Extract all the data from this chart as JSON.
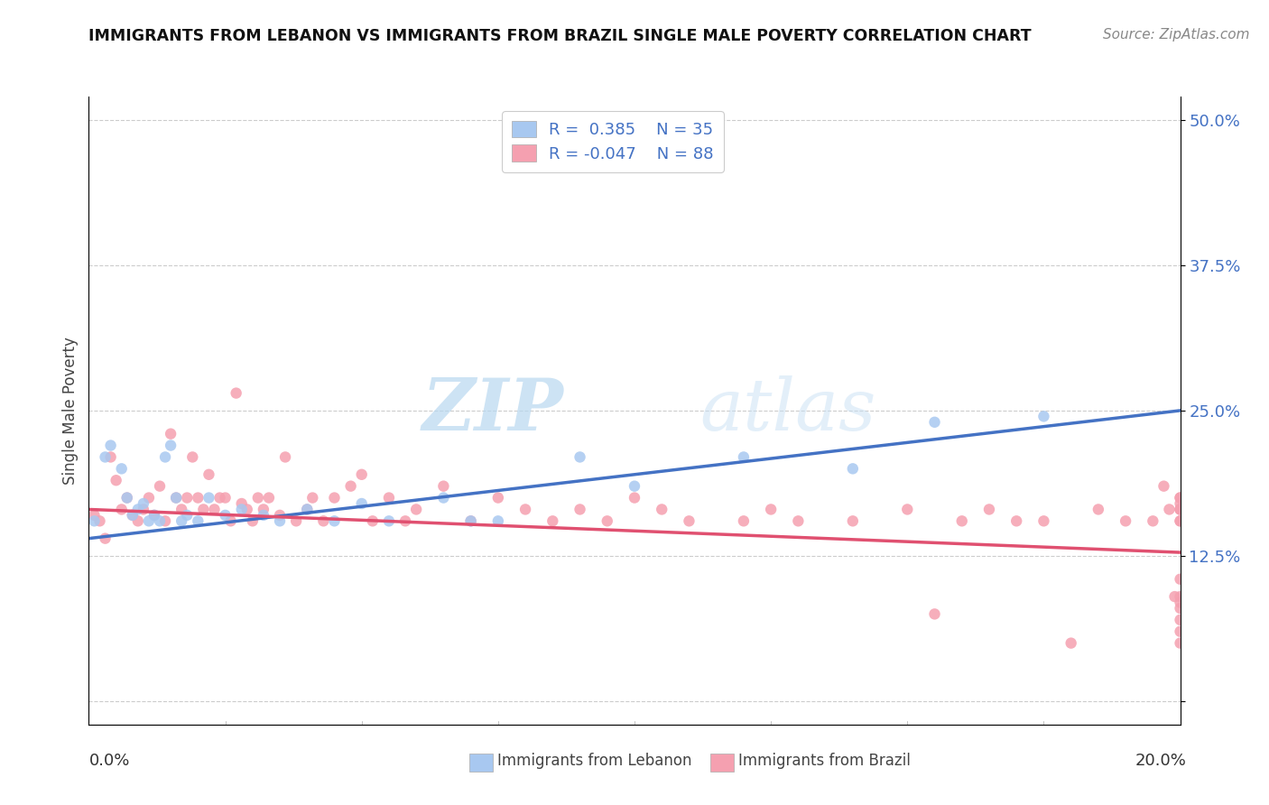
{
  "title": "IMMIGRANTS FROM LEBANON VS IMMIGRANTS FROM BRAZIL SINGLE MALE POVERTY CORRELATION CHART",
  "source": "Source: ZipAtlas.com",
  "ylabel": "Single Male Poverty",
  "xlim": [
    0.0,
    0.2
  ],
  "ylim": [
    -0.02,
    0.52
  ],
  "yticks": [
    0.0,
    0.125,
    0.25,
    0.375,
    0.5
  ],
  "ytick_labels": [
    "",
    "12.5%",
    "25.0%",
    "37.5%",
    "50.0%"
  ],
  "color_lebanon": "#a8c8f0",
  "color_brazil": "#f5a0b0",
  "line_color_lebanon": "#4472c4",
  "line_color_brazil": "#e05070",
  "watermark_zip": "ZIP",
  "watermark_atlas": "atlas",
  "background_color": "#ffffff",
  "grid_color": "#cccccc",
  "leb_line_x0": 0.0,
  "leb_line_y0": 0.14,
  "leb_line_x1": 0.2,
  "leb_line_y1": 0.25,
  "bra_line_x0": 0.0,
  "bra_line_y0": 0.165,
  "bra_line_x1": 0.2,
  "bra_line_y1": 0.128,
  "lebanon_scatter_x": [
    0.001,
    0.003,
    0.004,
    0.006,
    0.007,
    0.008,
    0.009,
    0.01,
    0.011,
    0.012,
    0.013,
    0.014,
    0.015,
    0.016,
    0.017,
    0.018,
    0.02,
    0.022,
    0.025,
    0.028,
    0.032,
    0.035,
    0.04,
    0.045,
    0.05,
    0.055,
    0.065,
    0.07,
    0.075,
    0.09,
    0.1,
    0.12,
    0.14,
    0.155,
    0.175
  ],
  "lebanon_scatter_y": [
    0.155,
    0.21,
    0.22,
    0.2,
    0.175,
    0.16,
    0.165,
    0.17,
    0.155,
    0.16,
    0.155,
    0.21,
    0.22,
    0.175,
    0.155,
    0.16,
    0.155,
    0.175,
    0.16,
    0.165,
    0.16,
    0.155,
    0.165,
    0.155,
    0.17,
    0.155,
    0.175,
    0.155,
    0.155,
    0.21,
    0.185,
    0.21,
    0.2,
    0.24,
    0.245
  ],
  "brazil_scatter_x": [
    0.001,
    0.002,
    0.003,
    0.004,
    0.005,
    0.006,
    0.007,
    0.008,
    0.009,
    0.01,
    0.011,
    0.012,
    0.013,
    0.014,
    0.015,
    0.016,
    0.017,
    0.018,
    0.019,
    0.02,
    0.021,
    0.022,
    0.023,
    0.024,
    0.025,
    0.026,
    0.027,
    0.028,
    0.029,
    0.03,
    0.031,
    0.032,
    0.033,
    0.035,
    0.036,
    0.038,
    0.04,
    0.041,
    0.043,
    0.045,
    0.048,
    0.05,
    0.052,
    0.055,
    0.058,
    0.06,
    0.065,
    0.07,
    0.075,
    0.08,
    0.085,
    0.09,
    0.095,
    0.1,
    0.105,
    0.11,
    0.12,
    0.125,
    0.13,
    0.14,
    0.15,
    0.155,
    0.16,
    0.165,
    0.17,
    0.175,
    0.18,
    0.185,
    0.19,
    0.195,
    0.197,
    0.198,
    0.199,
    0.2,
    0.2,
    0.2,
    0.2,
    0.2,
    0.2,
    0.2,
    0.2,
    0.2,
    0.2,
    0.2,
    0.2,
    0.2,
    0.2,
    0.2
  ],
  "brazil_scatter_y": [
    0.16,
    0.155,
    0.14,
    0.21,
    0.19,
    0.165,
    0.175,
    0.16,
    0.155,
    0.165,
    0.175,
    0.16,
    0.185,
    0.155,
    0.23,
    0.175,
    0.165,
    0.175,
    0.21,
    0.175,
    0.165,
    0.195,
    0.165,
    0.175,
    0.175,
    0.155,
    0.265,
    0.17,
    0.165,
    0.155,
    0.175,
    0.165,
    0.175,
    0.16,
    0.21,
    0.155,
    0.165,
    0.175,
    0.155,
    0.175,
    0.185,
    0.195,
    0.155,
    0.175,
    0.155,
    0.165,
    0.185,
    0.155,
    0.175,
    0.165,
    0.155,
    0.165,
    0.155,
    0.175,
    0.165,
    0.155,
    0.155,
    0.165,
    0.155,
    0.155,
    0.165,
    0.075,
    0.155,
    0.165,
    0.155,
    0.155,
    0.05,
    0.165,
    0.155,
    0.155,
    0.185,
    0.165,
    0.09,
    0.155,
    0.165,
    0.155,
    0.175,
    0.165,
    0.17,
    0.175,
    0.08,
    0.09,
    0.085,
    0.105,
    0.06,
    0.07,
    0.165,
    0.05
  ]
}
